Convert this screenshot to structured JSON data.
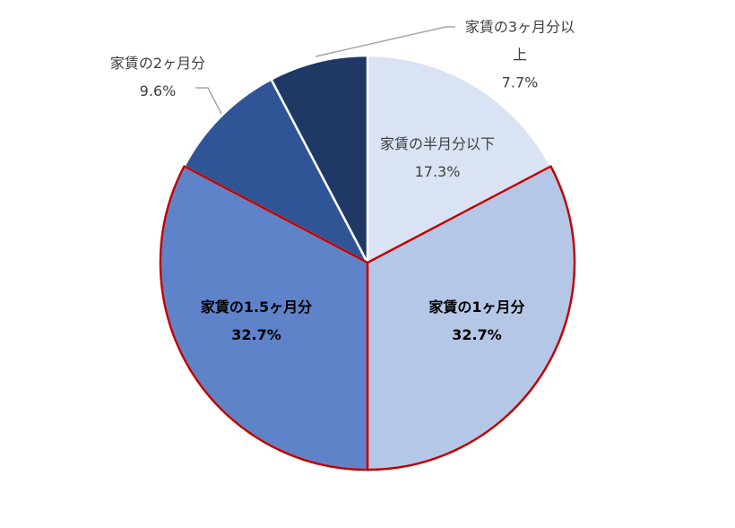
{
  "chart_data": {
    "type": "pie",
    "categories": [
      "家賃の半月分以下",
      "家賃の1ヶ月分",
      "家賃の1.5ヶ月分",
      "家賃の2ヶ月分",
      "家賃の3ヶ月分以上"
    ],
    "values": [
      17.3,
      32.7,
      32.7,
      9.6,
      7.7
    ],
    "value_labels": [
      "17.3%",
      "32.7%",
      "32.7%",
      "9.6%",
      "7.7%"
    ],
    "colors": [
      "#dae3f3",
      "#b4c7e7",
      "#5f83c9",
      "#2f5597",
      "#1f3864"
    ],
    "highlight_color": "#c00000",
    "highlighted": [
      1,
      2
    ]
  }
}
